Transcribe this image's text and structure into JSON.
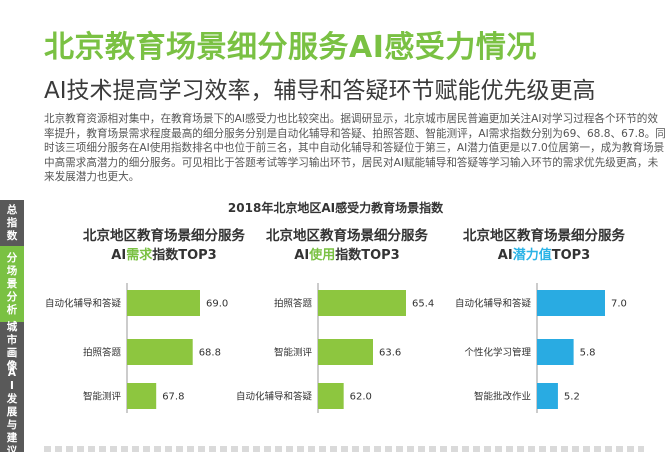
{
  "header": {
    "title": "北京教育场景细分服务AI感受力情况",
    "subtitle": "AI技术提高学习效率，辅导和答疑环节赋能优先级更高",
    "intro": "北京教育资源相对集中，在教育场景下的AI感受力也比较突出。据调研显示，北京城市居民普遍更加关注AI对学习过程各个环节的效率提升，教育场景需求程度最高的细分服务分别是自动化辅导和答疑、拍照答题、智能测评，AI需求指数分别为69、68.8、67.8。同时该三项细分服务在AI使用指数排名中也位于前三名，其中自动化辅导和答疑位于第三，AI潜力值更是以7.0位居第一，成为教育场景中高需求高潜力的细分服务。可见相比于答题考试等学习输出环节，居民对AI赋能辅导和答疑等学习输入环节的需求优先级更高，未来发展潜力也更大。"
  },
  "sidebar": {
    "items": [
      {
        "label": "总指数"
      },
      {
        "label": "分场景分析"
      },
      {
        "label": "城市画像"
      },
      {
        "label": "AI发展与建议"
      }
    ],
    "active_index": 1
  },
  "chart_section_title": "2018年北京地区AI感受力教育场景指数",
  "colors": {
    "accent_green": "#7ac143",
    "accent_blue": "#2ab3e6",
    "bar_green": "#8dc63f",
    "bar_blue": "#29abe2"
  },
  "chart_data": [
    {
      "type": "bar",
      "orientation": "horizontal",
      "title": "北京地区教育场景细分服务",
      "subtitle_prefix": "AI",
      "subtitle_highlight": "需求",
      "subtitle_suffix": "指数TOP3",
      "categories": [
        "自动化辅导和答疑",
        "拍照答题",
        "智能测评"
      ],
      "values": [
        69.0,
        68.8,
        67.8
      ],
      "value_labels": [
        "69.0",
        "68.8",
        "67.8"
      ],
      "xlim": [
        67.0,
        69.0
      ],
      "color": "#8dc63f"
    },
    {
      "type": "bar",
      "orientation": "horizontal",
      "title": "北京地区教育场景细分服务",
      "subtitle_prefix": "AI",
      "subtitle_highlight": "使用",
      "subtitle_suffix": "指数TOP3",
      "categories": [
        "拍照答题",
        "智能测评",
        "自动化辅导和答疑"
      ],
      "values": [
        65.4,
        63.6,
        62.0
      ],
      "value_labels": [
        "65.4",
        "63.6",
        "62.0"
      ],
      "xlim": [
        60.6,
        65.4
      ],
      "color": "#8dc63f"
    },
    {
      "type": "bar",
      "orientation": "horizontal",
      "title": "北京地区教育场景细分服务",
      "subtitle_prefix": "AI",
      "subtitle_highlight": "潜力值",
      "subtitle_suffix": "TOP3",
      "categories": [
        "自动化辅导和答疑",
        "个性化学习管理",
        "智能批改作业"
      ],
      "values": [
        7.0,
        5.8,
        5.2
      ],
      "value_labels": [
        "7.0",
        "5.8",
        "5.2"
      ],
      "xlim": [
        4.4,
        7.0
      ],
      "color": "#29abe2"
    }
  ]
}
